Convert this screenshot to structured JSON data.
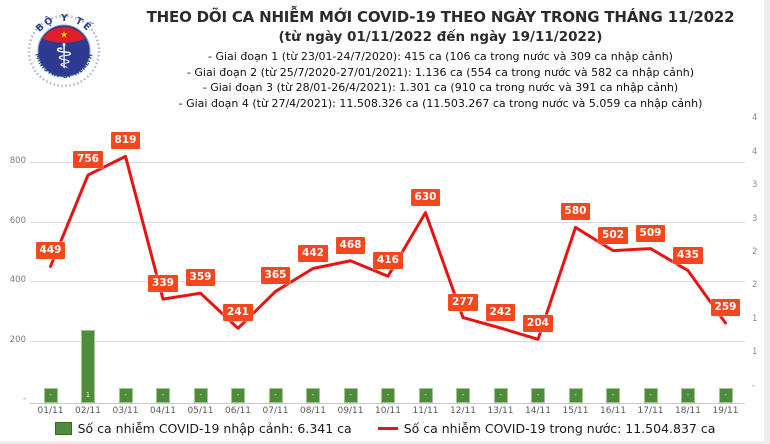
{
  "header": {
    "logo": {
      "top_text": "BỘ Y TẾ",
      "bottom_text": "MINISTRY OF HEALTH"
    },
    "title": "THEO DÕI CA NHIỄM MỚI COVID-19 THEO NGÀY TRONG THÁNG 11/2022",
    "subtitle": "(từ ngày 01/11/2022 đến ngày 19/11/2022)",
    "phases": [
      "- Giai đoạn 1 (từ 23/01-24/7/2020): 415 ca (106 ca trong nước và 309 ca nhập cảnh)",
      "- Giai đoạn 2 (từ 25/7/2020-27/01/2021): 1.136 ca (554 ca trong nước và 582 ca nhập cảnh)",
      "- Giai đoạn 3 (từ 28/01-26/4/2021): 1.301 ca (910 ca trong nước và 391 ca nhập cảnh)",
      "- Giai đoạn 4 (từ 27/4/2021): 11.508.326 ca (11.503.267 ca trong nước và 5.059 ca nhập cảnh)"
    ]
  },
  "chart_data": {
    "type": "combo",
    "categories": [
      "01/11",
      "02/11",
      "03/11",
      "04/11",
      "05/11",
      "06/11",
      "07/11",
      "08/11",
      "09/11",
      "10/11",
      "11/11",
      "12/11",
      "13/11",
      "14/11",
      "15/11",
      "16/11",
      "17/11",
      "18/11",
      "19/11"
    ],
    "series": [
      {
        "name": "Số ca nhiễm COVID-19 trong nước",
        "chart": "line",
        "color": "#e81414",
        "label_bg": "#f5471d",
        "values": [
          449,
          756,
          819,
          339,
          359,
          241,
          365,
          442,
          468,
          416,
          630,
          277,
          242,
          204,
          580,
          502,
          509,
          435,
          259
        ]
      },
      {
        "name": "Số ca nhiễm COVID-19 nhập cảnh",
        "chart": "bar",
        "color": "#4e8b3c",
        "axis": "right",
        "bar_labels": [
          "-",
          "1",
          "-",
          "-",
          "-",
          "-",
          "-",
          "-",
          "-",
          "-",
          "-",
          "-",
          "-",
          "-",
          "-",
          "-",
          "-",
          "-",
          "-"
        ],
        "values_est_right_axis": [
          0.22,
          1.1,
          0.22,
          0.22,
          0.22,
          0.22,
          0.22,
          0.22,
          0.22,
          0.22,
          0.22,
          0.22,
          0.22,
          0.22,
          0.22,
          0.22,
          0.22,
          0.22,
          0.22
        ]
      }
    ],
    "left_axis": {
      "ticks": [
        {
          "label": "800",
          "value": 800
        },
        {
          "label": "600",
          "value": 600
        },
        {
          "label": "400",
          "value": 400
        },
        {
          "label": "200",
          "value": 200
        },
        {
          "label": "-",
          "value": 0
        }
      ]
    },
    "right_axis": {
      "ticks": [
        {
          "label": "4",
          "value": 4.5
        },
        {
          "label": "4",
          "value": 4
        },
        {
          "label": "3",
          "value": 3.5
        },
        {
          "label": "3",
          "value": 3
        },
        {
          "label": "2",
          "value": 2.5
        },
        {
          "label": "2",
          "value": 2
        },
        {
          "label": "1",
          "value": 1.5
        },
        {
          "label": "1",
          "value": 1
        },
        {
          "label": "-",
          "value": 0.5
        }
      ]
    },
    "grid": "horizontal",
    "legend_position": "bottom"
  },
  "legend": {
    "bar": {
      "label": "Số ca nhiễm COVID-19 nhập cảnh: 6.341 ca",
      "color": "#4e8b3c"
    },
    "line": {
      "label": "Số ca nhiễm COVID-19 trong nước: 11.504.837 ca",
      "color": "#e81414"
    }
  }
}
